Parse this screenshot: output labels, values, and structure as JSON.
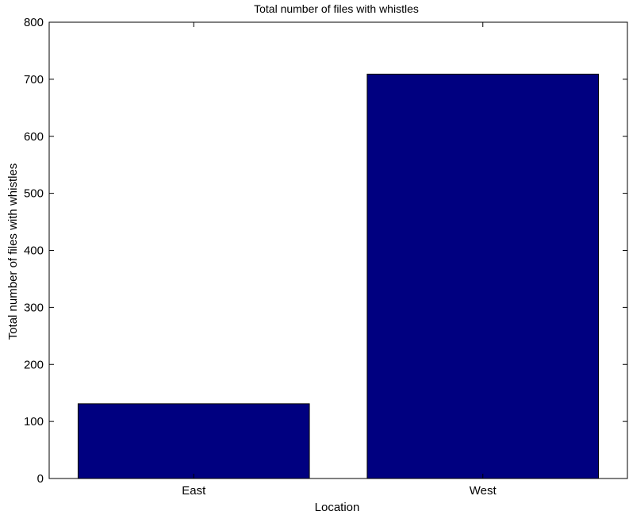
{
  "chart_data": {
    "type": "bar",
    "title": "Total number of files with whistles",
    "xlabel": "Location",
    "ylabel": "Total number of files with whistles",
    "categories": [
      "East",
      "West"
    ],
    "values": [
      131,
      709
    ],
    "ylim": [
      0,
      800
    ],
    "yticks": [
      0,
      100,
      200,
      300,
      400,
      500,
      600,
      700,
      800
    ],
    "grid": false,
    "bar_color": "#000080",
    "axis_color": "#000000"
  }
}
